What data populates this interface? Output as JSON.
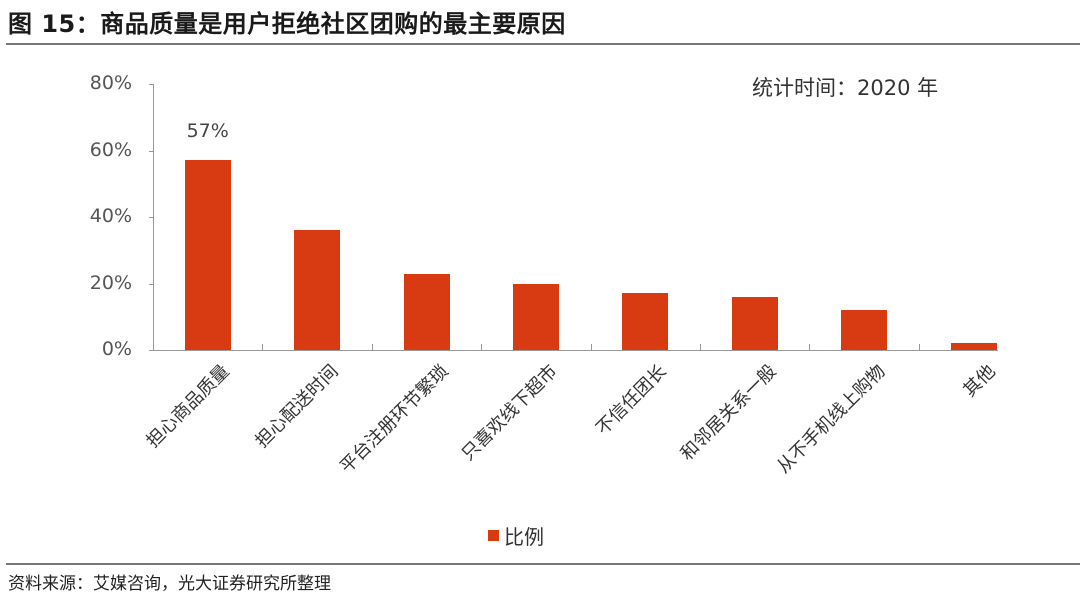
{
  "header": {
    "title": "图 15：商品质量是用户拒绝社区团购的最主要原因",
    "note": "统计时间：2020 年"
  },
  "footer": {
    "source": "资料来源：艾媒咨询，光大证券研究所整理"
  },
  "colors": {
    "bar": "#d83a12",
    "axis": "#999999"
  },
  "chart_data": {
    "type": "bar",
    "title": "图 15：商品质量是用户拒绝社区团购的最主要原因",
    "subtitle": "统计时间：2020 年",
    "categories": [
      "担心商品质量",
      "担心配送时间",
      "平台注册环节繁琐",
      "只喜欢线下超市",
      "不信任团长",
      "和邻居关系一般",
      "从不手机线上购物",
      "其他"
    ],
    "series": [
      {
        "name": "比例",
        "values": [
          57,
          36,
          23,
          20,
          17,
          16,
          12,
          2
        ]
      }
    ],
    "annotations": [
      {
        "category": "担心商品质量",
        "text": "57%"
      }
    ],
    "xlabel": "",
    "ylabel": "",
    "ylim": [
      0,
      80
    ],
    "yticks": [
      "0%",
      "20%",
      "40%",
      "60%",
      "80%"
    ],
    "grid": false,
    "legend_position": "bottom",
    "source": "资料来源：艾媒咨询，光大证券研究所整理"
  }
}
